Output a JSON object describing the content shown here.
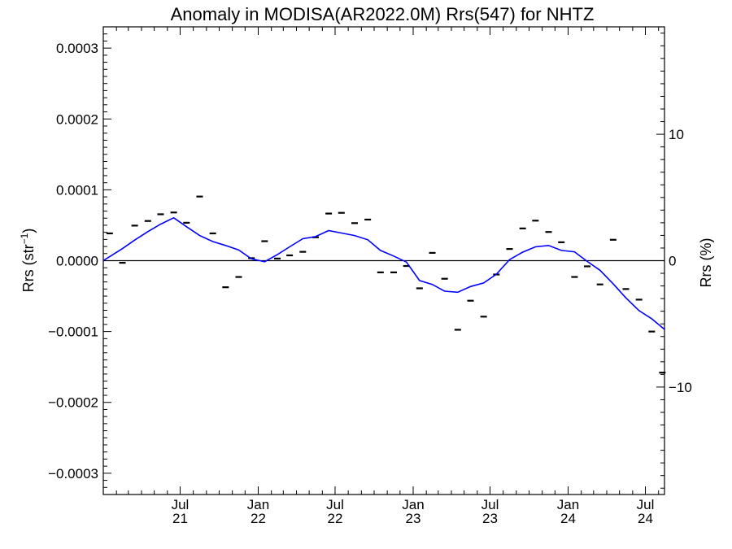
{
  "chart_data": {
    "type": "scatter",
    "title": "Anomaly in MODISA(AR2022.0M) Rrs(547) for NHTZ",
    "ylabel": {
      "main": "Rrs (str",
      "sup": "−1",
      "end": ")"
    },
    "y2label": "Rrs (%)",
    "ylim": [
      -0.00033,
      0.00033
    ],
    "y2lim": [
      -18.5,
      18.5
    ],
    "xlim": [
      "2021-01-01",
      "2024-08-15"
    ],
    "y_ticks": [
      {
        "value": 0.0003,
        "label": "0.0003"
      },
      {
        "value": 0.0002,
        "label": "0.0002"
      },
      {
        "value": 0.0001,
        "label": "0.0001"
      },
      {
        "value": 0.0,
        "label": "0.0000"
      },
      {
        "value": -0.0001,
        "label": "−0.0001"
      },
      {
        "value": -0.0002,
        "label": "−0.0002"
      },
      {
        "value": -0.0003,
        "label": "−0.0003"
      }
    ],
    "y2_ticks": [
      {
        "value": 10,
        "label": "10"
      },
      {
        "value": 0,
        "label": "0"
      },
      {
        "value": -10,
        "label": "−10"
      }
    ],
    "x_ticks": [
      {
        "date": "2021-07-01",
        "month": "Jul",
        "year": "21"
      },
      {
        "date": "2022-01-01",
        "month": "Jan",
        "year": "22"
      },
      {
        "date": "2022-07-01",
        "month": "Jul",
        "year": "22"
      },
      {
        "date": "2023-01-01",
        "month": "Jan",
        "year": "23"
      },
      {
        "date": "2023-07-01",
        "month": "Jul",
        "year": "23"
      },
      {
        "date": "2024-01-01",
        "month": "Jan",
        "year": "24"
      },
      {
        "date": "2024-07-01",
        "month": "Jul",
        "year": "24"
      }
    ],
    "series": [
      {
        "color": "#000000",
        "marker": "dash",
        "points": [
          {
            "x": "2021-01-16",
            "y": 3.85e-05
          },
          {
            "x": "2021-02-15",
            "y": -3e-06
          },
          {
            "x": "2021-03-16",
            "y": 4.95e-05
          },
          {
            "x": "2021-04-16",
            "y": 5.6e-05
          },
          {
            "x": "2021-05-16",
            "y": 6.55e-05
          },
          {
            "x": "2021-06-16",
            "y": 6.8e-05
          },
          {
            "x": "2021-07-16",
            "y": 5.35e-05
          },
          {
            "x": "2021-08-16",
            "y": 9.05e-05
          },
          {
            "x": "2021-09-16",
            "y": 3.85e-05
          },
          {
            "x": "2021-10-16",
            "y": -3.75e-05
          },
          {
            "x": "2021-11-16",
            "y": -2.3e-05
          },
          {
            "x": "2021-12-16",
            "y": 3.5e-06
          },
          {
            "x": "2022-01-16",
            "y": 2.75e-05
          },
          {
            "x": "2022-02-15",
            "y": 3e-06
          },
          {
            "x": "2022-03-16",
            "y": 7.5e-06
          },
          {
            "x": "2022-04-16",
            "y": 1.25e-05
          },
          {
            "x": "2022-05-16",
            "y": 3.3e-05
          },
          {
            "x": "2022-06-16",
            "y": 6.65e-05
          },
          {
            "x": "2022-07-16",
            "y": 6.75e-05
          },
          {
            "x": "2022-08-16",
            "y": 5.3e-05
          },
          {
            "x": "2022-09-16",
            "y": 5.8e-05
          },
          {
            "x": "2022-10-16",
            "y": -1.65e-05
          },
          {
            "x": "2022-11-16",
            "y": -1.65e-05
          },
          {
            "x": "2022-12-16",
            "y": -7.5e-06
          },
          {
            "x": "2023-01-16",
            "y": -3.9e-05
          },
          {
            "x": "2023-02-15",
            "y": 1.1e-05
          },
          {
            "x": "2023-03-16",
            "y": -2.55e-05
          },
          {
            "x": "2023-04-16",
            "y": -9.75e-05
          },
          {
            "x": "2023-05-16",
            "y": -5.65e-05
          },
          {
            "x": "2023-06-16",
            "y": -7.9e-05
          },
          {
            "x": "2023-07-16",
            "y": -1.95e-05
          },
          {
            "x": "2023-08-16",
            "y": 1.65e-05
          },
          {
            "x": "2023-09-16",
            "y": 4.55e-05
          },
          {
            "x": "2023-10-16",
            "y": 5.65e-05
          },
          {
            "x": "2023-11-16",
            "y": 4.05e-05
          },
          {
            "x": "2023-12-16",
            "y": 2.6e-05
          },
          {
            "x": "2024-01-16",
            "y": -2.3e-05
          },
          {
            "x": "2024-02-15",
            "y": -8e-06
          },
          {
            "x": "2024-03-16",
            "y": -3.35e-05
          },
          {
            "x": "2024-04-16",
            "y": 2.95e-05
          },
          {
            "x": "2024-05-16",
            "y": -4e-05
          },
          {
            "x": "2024-06-16",
            "y": -5.5e-05
          },
          {
            "x": "2024-07-16",
            "y": -0.0001
          },
          {
            "x": "2024-08-10",
            "y": -0.000158
          }
        ]
      },
      {
        "color": "#0000ff",
        "marker": "line",
        "points": [
          {
            "x": "2021-01-01",
            "y": 0.0
          },
          {
            "x": "2021-02-15",
            "y": 1.7e-05
          },
          {
            "x": "2021-03-16",
            "y": 2.9e-05
          },
          {
            "x": "2021-04-16",
            "y": 4.1e-05
          },
          {
            "x": "2021-05-16",
            "y": 5.15e-05
          },
          {
            "x": "2021-06-16",
            "y": 6.05e-05
          },
          {
            "x": "2021-07-16",
            "y": 4.8e-05
          },
          {
            "x": "2021-08-16",
            "y": 3.55e-05
          },
          {
            "x": "2021-09-16",
            "y": 2.7e-05
          },
          {
            "x": "2021-10-16",
            "y": 2.15e-05
          },
          {
            "x": "2021-11-16",
            "y": 1.5e-05
          },
          {
            "x": "2021-12-16",
            "y": 2.5e-06
          },
          {
            "x": "2022-01-16",
            "y": -1.5e-06
          },
          {
            "x": "2022-02-15",
            "y": 8.5e-06
          },
          {
            "x": "2022-03-16",
            "y": 1.95e-05
          },
          {
            "x": "2022-04-16",
            "y": 3.1e-05
          },
          {
            "x": "2022-05-16",
            "y": 3.4e-05
          },
          {
            "x": "2022-06-16",
            "y": 4.25e-05
          },
          {
            "x": "2022-07-16",
            "y": 3.9e-05
          },
          {
            "x": "2022-08-16",
            "y": 3.55e-05
          },
          {
            "x": "2022-09-16",
            "y": 2.95e-05
          },
          {
            "x": "2022-10-16",
            "y": 1.45e-05
          },
          {
            "x": "2022-11-16",
            "y": 6.5e-06
          },
          {
            "x": "2022-12-16",
            "y": -2e-06
          },
          {
            "x": "2023-01-16",
            "y": -2.8e-05
          },
          {
            "x": "2023-02-15",
            "y": -3.35e-05
          },
          {
            "x": "2023-03-16",
            "y": -4.3e-05
          },
          {
            "x": "2023-04-16",
            "y": -4.45e-05
          },
          {
            "x": "2023-05-16",
            "y": -3.65e-05
          },
          {
            "x": "2023-06-16",
            "y": -3.15e-05
          },
          {
            "x": "2023-07-16",
            "y": -1.9e-05
          },
          {
            "x": "2023-08-16",
            "y": 1.5e-06
          },
          {
            "x": "2023-09-16",
            "y": 1.2e-05
          },
          {
            "x": "2023-10-16",
            "y": 1.95e-05
          },
          {
            "x": "2023-11-16",
            "y": 2.15e-05
          },
          {
            "x": "2023-12-16",
            "y": 1.45e-05
          },
          {
            "x": "2024-01-16",
            "y": 1.25e-05
          },
          {
            "x": "2024-02-15",
            "y": -1e-06
          },
          {
            "x": "2024-03-16",
            "y": -1.35e-05
          },
          {
            "x": "2024-04-16",
            "y": -3.25e-05
          },
          {
            "x": "2024-05-16",
            "y": -5.25e-05
          },
          {
            "x": "2024-06-16",
            "y": -7.05e-05
          },
          {
            "x": "2024-07-16",
            "y": -8.2e-05
          },
          {
            "x": "2024-08-16",
            "y": -9.75e-05
          }
        ]
      }
    ]
  }
}
